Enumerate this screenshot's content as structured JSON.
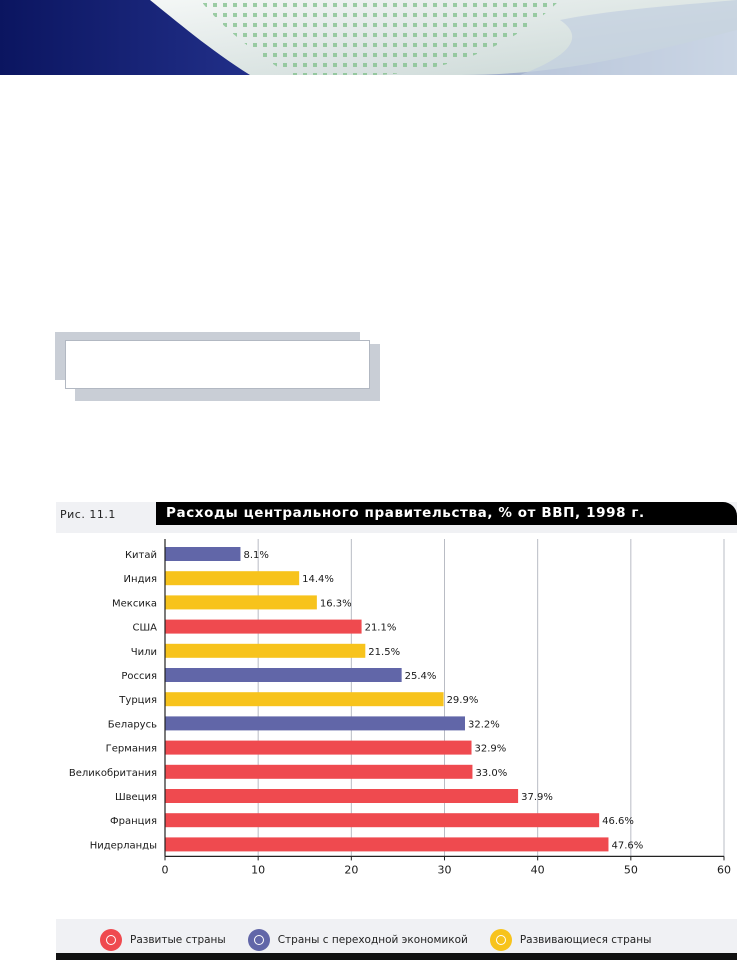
{
  "figure": {
    "label": "Рис. 11.1",
    "title": "Расходы центрального правительства, % от ВВП, 1998 г."
  },
  "colors": {
    "developed": "#ef4a4f",
    "transition": "#6166a8",
    "developing": "#f7c31c"
  },
  "legend": {
    "developed": "Развитые страны",
    "transition": "Страны с переходной экономикой",
    "developing": "Развивающиеся страны"
  },
  "chart_data": {
    "type": "bar",
    "orientation": "horizontal",
    "title": "Расходы центрального правительства, % от ВВП, 1998 г.",
    "categories": [
      "Китай",
      "Индия",
      "Мексика",
      "США",
      "Чили",
      "Россия",
      "Турция",
      "Беларусь",
      "Германия",
      "Великобритания",
      "Швеция",
      "Франция",
      "Нидерланды"
    ],
    "values": [
      8.1,
      14.4,
      16.3,
      21.1,
      21.5,
      25.4,
      29.9,
      32.2,
      32.9,
      33.0,
      37.9,
      46.6,
      47.6
    ],
    "value_labels": [
      "8.1%",
      "14.4%",
      "16.3%",
      "21.1%",
      "21.5%",
      "25.4%",
      "29.9%",
      "32.2%",
      "32.9%",
      "33.0%",
      "37.9%",
      "46.6%",
      "47.6%"
    ],
    "groups": [
      "transition",
      "developing",
      "developing",
      "developed",
      "developing",
      "transition",
      "developing",
      "transition",
      "developed",
      "developed",
      "developed",
      "developed",
      "developed"
    ],
    "xlim": [
      0,
      60
    ],
    "xticks": [
      0,
      10,
      20,
      30,
      40,
      50,
      60
    ],
    "grid": true,
    "legend_position": "bottom"
  }
}
